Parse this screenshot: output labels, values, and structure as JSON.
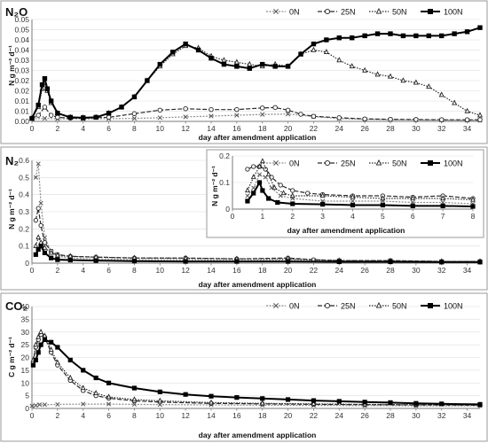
{
  "chart_data": [
    {
      "type": "line",
      "panel_label": "N₂O",
      "xlabel": "day after amendment application",
      "ylabel": "N g m⁻² d⁻¹",
      "xlim": [
        0,
        35
      ],
      "ylim": [
        0,
        0.05
      ],
      "xticks": [
        "0",
        "2",
        "4",
        "6",
        "8",
        "10",
        "12",
        "14",
        "16",
        "18",
        "20",
        "22",
        "24",
        "26",
        "28",
        "30",
        "32",
        "34"
      ],
      "yticks": [
        "0.00",
        "0.01",
        "0.01",
        "0.02",
        "0.02",
        "0.03",
        "0.03",
        "0.04",
        "0.04",
        "0.05",
        "0.05"
      ],
      "ytick_values": [
        0,
        0.005,
        0.01,
        0.015,
        0.02,
        0.025,
        0.03,
        0.035,
        0.04,
        0.045,
        0.05
      ],
      "legend": [
        "0N",
        "25N",
        "50N",
        "100N"
      ],
      "series": [
        {
          "name": "0N",
          "x": [
            0,
            1,
            2,
            4,
            6,
            8,
            10,
            12,
            14,
            16,
            18,
            20,
            22,
            24,
            26,
            28,
            30,
            32,
            34,
            35
          ],
          "y": [
            0.0012,
            0.0015,
            0.0012,
            0.0012,
            0.0013,
            0.0015,
            0.0018,
            0.0022,
            0.0026,
            0.003,
            0.0034,
            0.0036,
            0.0024,
            0.0014,
            0.001,
            0.0008,
            0.0007,
            0.0006,
            0.0005,
            0.0005
          ]
        },
        {
          "name": "25N",
          "x": [
            0,
            0.5,
            1,
            1.5,
            2,
            3,
            4,
            6,
            8,
            10,
            12,
            14,
            16,
            18,
            19,
            20,
            21,
            22,
            24,
            26,
            28,
            30,
            32,
            34,
            35
          ],
          "y": [
            0.0015,
            0.003,
            0.007,
            0.003,
            0.002,
            0.0016,
            0.0016,
            0.002,
            0.0038,
            0.0055,
            0.0062,
            0.0058,
            0.0058,
            0.0066,
            0.0068,
            0.0055,
            0.0035,
            0.0025,
            0.0018,
            0.0012,
            0.001,
            0.0009,
            0.0008,
            0.0008,
            0.0008
          ]
        },
        {
          "name": "50N",
          "x": [
            0,
            0.5,
            0.8,
            1,
            1.2,
            1.5,
            2,
            3,
            4,
            5,
            6,
            7,
            8,
            9,
            10,
            11,
            12,
            13,
            14,
            15,
            16,
            17,
            18,
            19,
            20,
            21,
            22,
            23,
            24,
            25,
            26,
            27,
            28,
            29,
            30,
            31,
            32,
            33,
            34,
            35
          ],
          "y": [
            0.0015,
            0.007,
            0.016,
            0.019,
            0.015,
            0.009,
            0.004,
            0.002,
            0.0018,
            0.002,
            0.004,
            0.007,
            0.012,
            0.02,
            0.027,
            0.033,
            0.037,
            0.036,
            0.032,
            0.03,
            0.029,
            0.028,
            0.027,
            0.028,
            0.027,
            0.033,
            0.035,
            0.034,
            0.03,
            0.027,
            0.025,
            0.023,
            0.022,
            0.02,
            0.019,
            0.017,
            0.013,
            0.009,
            0.005,
            0.003
          ]
        },
        {
          "name": "100N",
          "x": [
            0,
            0.5,
            0.8,
            1,
            1.2,
            1.5,
            2,
            3,
            4,
            5,
            6,
            7,
            8,
            9,
            10,
            11,
            12,
            13,
            14,
            15,
            16,
            17,
            18,
            19,
            20,
            21,
            22,
            23,
            24,
            25,
            26,
            27,
            28,
            29,
            30,
            31,
            32,
            33,
            34,
            35
          ],
          "y": [
            0.0015,
            0.008,
            0.018,
            0.021,
            0.016,
            0.01,
            0.004,
            0.002,
            0.0018,
            0.002,
            0.004,
            0.007,
            0.012,
            0.02,
            0.028,
            0.034,
            0.038,
            0.035,
            0.031,
            0.028,
            0.027,
            0.026,
            0.028,
            0.027,
            0.027,
            0.033,
            0.038,
            0.04,
            0.041,
            0.041,
            0.042,
            0.043,
            0.043,
            0.042,
            0.042,
            0.042,
            0.042,
            0.043,
            0.044,
            0.046
          ]
        }
      ]
    },
    {
      "type": "line",
      "panel_label": "N₂",
      "xlabel": "day after amendment application",
      "ylabel": "N g m⁻² d⁻¹",
      "xlim": [
        0,
        35
      ],
      "ylim": [
        0,
        0.6
      ],
      "xticks": [
        "0",
        "2",
        "4",
        "6",
        "8",
        "10",
        "12",
        "14",
        "16",
        "18",
        "20",
        "22",
        "24",
        "26",
        "28",
        "30",
        "32",
        "34"
      ],
      "yticks": [
        "0",
        "0.1",
        "0.2",
        "0.3",
        "0.4",
        "0.5",
        "0.6"
      ],
      "ytick_values": [
        0,
        0.1,
        0.2,
        0.3,
        0.4,
        0.5,
        0.6
      ],
      "series": [
        {
          "name": "0N",
          "x": [
            0.3,
            0.5,
            0.7,
            1,
            1.5,
            2,
            3,
            5,
            8,
            12,
            16,
            20,
            24,
            28,
            32,
            35
          ],
          "y": [
            0.5,
            0.58,
            0.35,
            0.15,
            0.07,
            0.04,
            0.03,
            0.025,
            0.02,
            0.02,
            0.015,
            0.02,
            0.015,
            0.015,
            0.01,
            0.01
          ]
        },
        {
          "name": "25N",
          "x": [
            0.3,
            0.5,
            0.7,
            1,
            1.5,
            2,
            3,
            5,
            8,
            12,
            16,
            20,
            22,
            24,
            28,
            32,
            35
          ],
          "y": [
            0.25,
            0.32,
            0.22,
            0.12,
            0.07,
            0.05,
            0.04,
            0.035,
            0.03,
            0.03,
            0.025,
            0.03,
            0.02,
            0.015,
            0.015,
            0.01,
            0.01
          ]
        },
        {
          "name": "50N",
          "x": [
            0.3,
            0.5,
            0.7,
            1,
            1.5,
            2,
            3,
            5,
            8,
            12,
            16,
            20,
            24,
            28,
            32,
            35
          ],
          "y": [
            0.1,
            0.15,
            0.12,
            0.09,
            0.06,
            0.045,
            0.04,
            0.035,
            0.03,
            0.028,
            0.025,
            0.025,
            0.015,
            0.012,
            0.01,
            0.01
          ]
        },
        {
          "name": "100N",
          "x": [
            0.3,
            0.5,
            0.7,
            1,
            1.5,
            2,
            3,
            5,
            8,
            12,
            16,
            20,
            24,
            28,
            32,
            35
          ],
          "y": [
            0.05,
            0.08,
            0.1,
            0.06,
            0.03,
            0.02,
            0.018,
            0.015,
            0.012,
            0.01,
            0.01,
            0.01,
            0.008,
            0.008,
            0.006,
            0.006
          ]
        }
      ],
      "inset": {
        "xlim": [
          0,
          8
        ],
        "ylim": [
          0,
          0.2
        ],
        "xlabel": "day after amendment application",
        "ylabel": "N g m⁻² d⁻¹",
        "xticks": [
          "0",
          "1",
          "2",
          "3",
          "4",
          "5",
          "6",
          "7",
          "8"
        ],
        "yticks": [
          "0",
          "0.1",
          "0.2"
        ],
        "ytick_values": [
          0,
          0.1,
          0.2
        ],
        "legend": [
          "0N",
          "25N",
          "50N",
          "100N"
        ],
        "series": [
          {
            "name": "0N",
            "x": [
              0.5,
              0.7,
              0.9,
              1.1,
              1.3,
              1.6,
              2,
              3,
              4,
              5,
              6,
              7,
              8
            ],
            "y": [
              0.05,
              0.08,
              0.13,
              0.12,
              0.08,
              0.05,
              0.04,
              0.03,
              0.03,
              0.03,
              0.025,
              0.025,
              0.02
            ]
          },
          {
            "name": "25N",
            "x": [
              0.5,
              0.7,
              0.9,
              1.1,
              1.3,
              1.6,
              2,
              2.5,
              3,
              4,
              5,
              6,
              7,
              8
            ],
            "y": [
              0.15,
              0.16,
              0.16,
              0.15,
              0.12,
              0.09,
              0.07,
              0.06,
              0.055,
              0.05,
              0.05,
              0.045,
              0.05,
              0.04
            ]
          },
          {
            "name": "50N",
            "x": [
              0.5,
              0.7,
              0.9,
              1.0,
              1.2,
              1.4,
              1.7,
              2,
              3,
              4,
              5,
              6,
              7,
              8
            ],
            "y": [
              0.07,
              0.12,
              0.16,
              0.18,
              0.13,
              0.08,
              0.06,
              0.05,
              0.05,
              0.045,
              0.04,
              0.04,
              0.04,
              0.035
            ]
          },
          {
            "name": "100N",
            "x": [
              0.5,
              0.7,
              0.9,
              1.0,
              1.2,
              1.5,
              2,
              3,
              4,
              5,
              6,
              7,
              8
            ],
            "y": [
              0.03,
              0.06,
              0.1,
              0.07,
              0.04,
              0.025,
              0.02,
              0.018,
              0.015,
              0.015,
              0.012,
              0.012,
              0.01
            ]
          }
        ]
      }
    },
    {
      "type": "line",
      "panel_label": "CO₂",
      "xlabel": "day after amendment application",
      "ylabel": "C g m⁻² d⁻¹",
      "xlim": [
        0,
        35
      ],
      "ylim": [
        0,
        40
      ],
      "xticks": [
        "0",
        "2",
        "4",
        "6",
        "8",
        "10",
        "12",
        "14",
        "16",
        "18",
        "20",
        "22",
        "24",
        "26",
        "28",
        "30",
        "32",
        "34"
      ],
      "yticks": [
        "0",
        "5",
        "10",
        "15",
        "20",
        "25",
        "30",
        "35",
        "40"
      ],
      "ytick_values": [
        0,
        5,
        10,
        15,
        20,
        25,
        30,
        35,
        40
      ],
      "legend": [
        "0N",
        "25N",
        "50N",
        "100N"
      ],
      "series": [
        {
          "name": "0N",
          "x": [
            0,
            0.3,
            0.6,
            1,
            2,
            4,
            6,
            8,
            10,
            14,
            18,
            22,
            26,
            30,
            35
          ],
          "y": [
            1,
            1.2,
            1.5,
            1.5,
            1.6,
            1.7,
            1.7,
            1.6,
            1.5,
            1.4,
            1.3,
            1.2,
            1.1,
            1,
            1
          ]
        },
        {
          "name": "25N",
          "x": [
            0.1,
            0.3,
            0.5,
            0.7,
            1,
            1.5,
            2,
            3,
            4,
            5,
            6,
            8,
            10,
            14,
            18,
            22,
            26,
            30,
            35
          ],
          "y": [
            18,
            24,
            27,
            29,
            28,
            22,
            17,
            11,
            7,
            5,
            4,
            3,
            2.5,
            2,
            1.8,
            1.6,
            1.5,
            1.4,
            1.3
          ]
        },
        {
          "name": "50N",
          "x": [
            0.1,
            0.3,
            0.5,
            0.7,
            1,
            1.5,
            2,
            3,
            4,
            5,
            6,
            8,
            10,
            14,
            18,
            22,
            26,
            30,
            35
          ],
          "y": [
            19,
            25,
            28,
            30,
            28.5,
            23,
            18,
            12,
            8,
            6,
            4.5,
            3.5,
            3,
            2.3,
            2,
            1.8,
            1.6,
            1.5,
            1.4
          ]
        },
        {
          "name": "100N",
          "x": [
            0.1,
            0.3,
            0.5,
            0.7,
            1,
            1.5,
            2,
            3,
            4,
            5,
            6,
            8,
            10,
            12,
            14,
            16,
            18,
            20,
            22,
            24,
            26,
            28,
            30,
            32,
            35
          ],
          "y": [
            17,
            19,
            22,
            25,
            27,
            26,
            24,
            19,
            15,
            12,
            10,
            8,
            6.5,
            5.5,
            4.8,
            4.3,
            3.9,
            3.5,
            3.1,
            2.8,
            2.5,
            2.3,
            2,
            1.8,
            1.6
          ]
        }
      ]
    }
  ]
}
